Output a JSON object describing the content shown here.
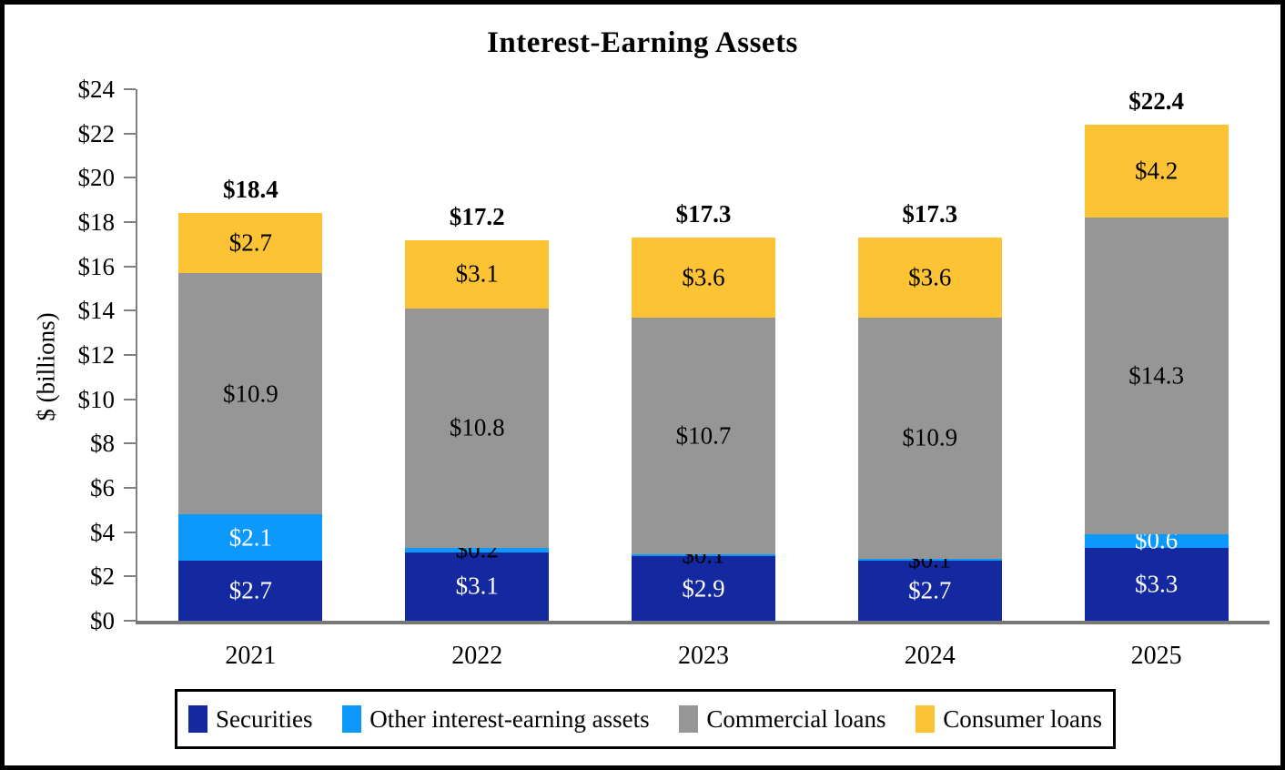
{
  "title": "Interest-Earning Assets",
  "y_axis": {
    "label": "$ (billions)",
    "min": 0,
    "max": 24,
    "step": 2,
    "tick_labels": [
      "$0",
      "$2",
      "$4",
      "$6",
      "$8",
      "$10",
      "$12",
      "$14",
      "$16",
      "$18",
      "$20",
      "$22",
      "$24"
    ]
  },
  "colors": {
    "securities": "#14289F",
    "other": "#0D99FB",
    "commercial": "#969696",
    "consumer": "#FCC334",
    "axis": "#808080",
    "text": "#000000"
  },
  "chart_data": {
    "type": "bar",
    "stacked": true,
    "title": "Interest-Earning Assets",
    "ylabel": "$ (billions)",
    "ylim": [
      0,
      24
    ],
    "ytick_step": 2,
    "grid": false,
    "legend_position": "bottom",
    "categories": [
      "2021",
      "2022",
      "2023",
      "2024",
      "2025"
    ],
    "series": [
      {
        "name": "Securities",
        "color": "#14289F",
        "values": [
          2.7,
          3.1,
          2.9,
          2.7,
          3.3
        ],
        "labels": [
          "$2.7",
          "$3.1",
          "$2.9",
          "$2.7",
          "$3.3"
        ],
        "label_colors": [
          "#ffffff",
          "#ffffff",
          "#ffffff",
          "#ffffff",
          "#ffffff"
        ]
      },
      {
        "name": "Other interest-earning assets",
        "color": "#0D99FB",
        "values": [
          2.1,
          0.2,
          0.1,
          0.1,
          0.6
        ],
        "labels": [
          "$2.1",
          "$0.2",
          "$0.1",
          "$0.1",
          "$0.6"
        ],
        "label_colors": [
          "#ffffff",
          "#000000",
          "#000000",
          "#000000",
          "#ffffff"
        ]
      },
      {
        "name": "Commercial loans",
        "color": "#969696",
        "values": [
          10.9,
          10.8,
          10.7,
          10.9,
          14.3
        ],
        "labels": [
          "$10.9",
          "$10.8",
          "$10.7",
          "$10.9",
          "$14.3"
        ],
        "label_colors": [
          "#000000",
          "#000000",
          "#000000",
          "#000000",
          "#000000"
        ]
      },
      {
        "name": "Consumer loans",
        "color": "#FCC334",
        "values": [
          2.7,
          3.1,
          3.6,
          3.6,
          4.2
        ],
        "labels": [
          "$2.7",
          "$3.1",
          "$3.6",
          "$3.6",
          "$4.2"
        ],
        "label_colors": [
          "#000000",
          "#000000",
          "#000000",
          "#000000",
          "#000000"
        ]
      }
    ],
    "totals": [
      "$18.4",
      "$17.2",
      "$17.3",
      "$17.3",
      "$22.4"
    ]
  }
}
